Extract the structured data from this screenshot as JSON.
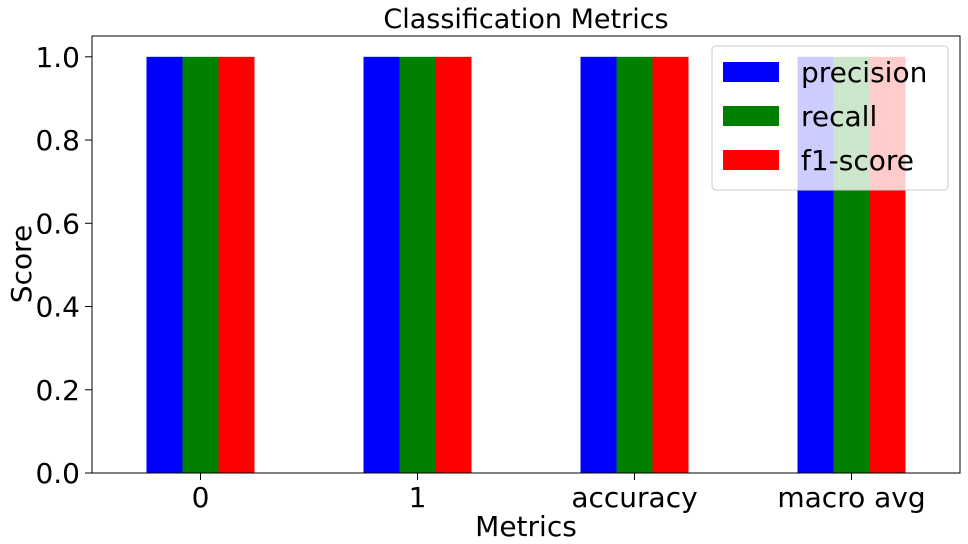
{
  "chart_data": {
    "type": "bar",
    "title": "Classification Metrics",
    "xlabel": "Metrics",
    "ylabel": "Score",
    "categories": [
      "0",
      "1",
      "accuracy",
      "macro avg"
    ],
    "series": [
      {
        "name": "precision",
        "values": [
          1.0,
          1.0,
          1.0,
          1.0
        ],
        "color": "#0000ff"
      },
      {
        "name": "recall",
        "values": [
          1.0,
          1.0,
          1.0,
          1.0
        ],
        "color": "#008000"
      },
      {
        "name": "f1-score",
        "values": [
          1.0,
          1.0,
          1.0,
          1.0
        ],
        "color": "#ff0000"
      }
    ],
    "ylim": [
      0,
      1.05
    ],
    "yticks": [
      "0.0",
      "0.2",
      "0.4",
      "0.6",
      "0.8",
      "1.0"
    ],
    "grid": false,
    "legend": "top-right"
  }
}
